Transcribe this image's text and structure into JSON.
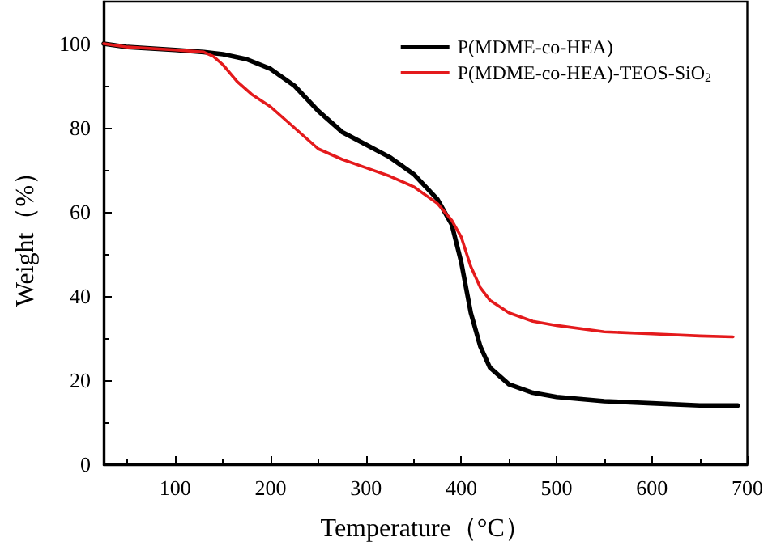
{
  "chart_data": {
    "type": "line",
    "xlabel": "Temperature（°C）",
    "ylabel": "Weight（%）",
    "xlim": [
      25,
      700
    ],
    "xticks": [
      100,
      200,
      300,
      400,
      500,
      600,
      700
    ],
    "ylim": [
      0,
      110
    ],
    "yticks": [
      0,
      20,
      40,
      60,
      80,
      100
    ],
    "grid": false,
    "legend": "top right",
    "marker": "none",
    "line_style": "solid",
    "series": [
      {
        "name": "P(MDME-co-HEA)",
        "color": "#000000",
        "x": [
          25,
          50,
          100,
          130,
          150,
          175,
          200,
          225,
          250,
          275,
          300,
          325,
          350,
          375,
          390,
          400,
          410,
          420,
          430,
          450,
          475,
          500,
          550,
          600,
          650,
          690
        ],
        "values": [
          100,
          99.2,
          98.5,
          98,
          97.5,
          96.3,
          94,
          90,
          84,
          79,
          76,
          73,
          69,
          63,
          57,
          48,
          36,
          28,
          23,
          19,
          17,
          16,
          15,
          14.5,
          14,
          14
        ]
      },
      {
        "name": "P(MDME-co-HEA)-TEOS-SiO$_{2}$",
        "color": "#e41a1c",
        "x": [
          25,
          50,
          100,
          130,
          140,
          150,
          165,
          180,
          200,
          225,
          250,
          275,
          300,
          325,
          350,
          375,
          390,
          400,
          410,
          420,
          430,
          450,
          475,
          500,
          550,
          600,
          650,
          685
        ],
        "values": [
          100,
          99.2,
          98.5,
          98,
          97,
          95,
          91,
          88,
          85,
          80,
          75,
          72.5,
          70.5,
          68.5,
          66,
          62,
          58,
          54,
          47,
          42,
          39,
          36,
          34,
          33,
          31.5,
          31,
          30.5,
          30.3
        ]
      }
    ]
  }
}
